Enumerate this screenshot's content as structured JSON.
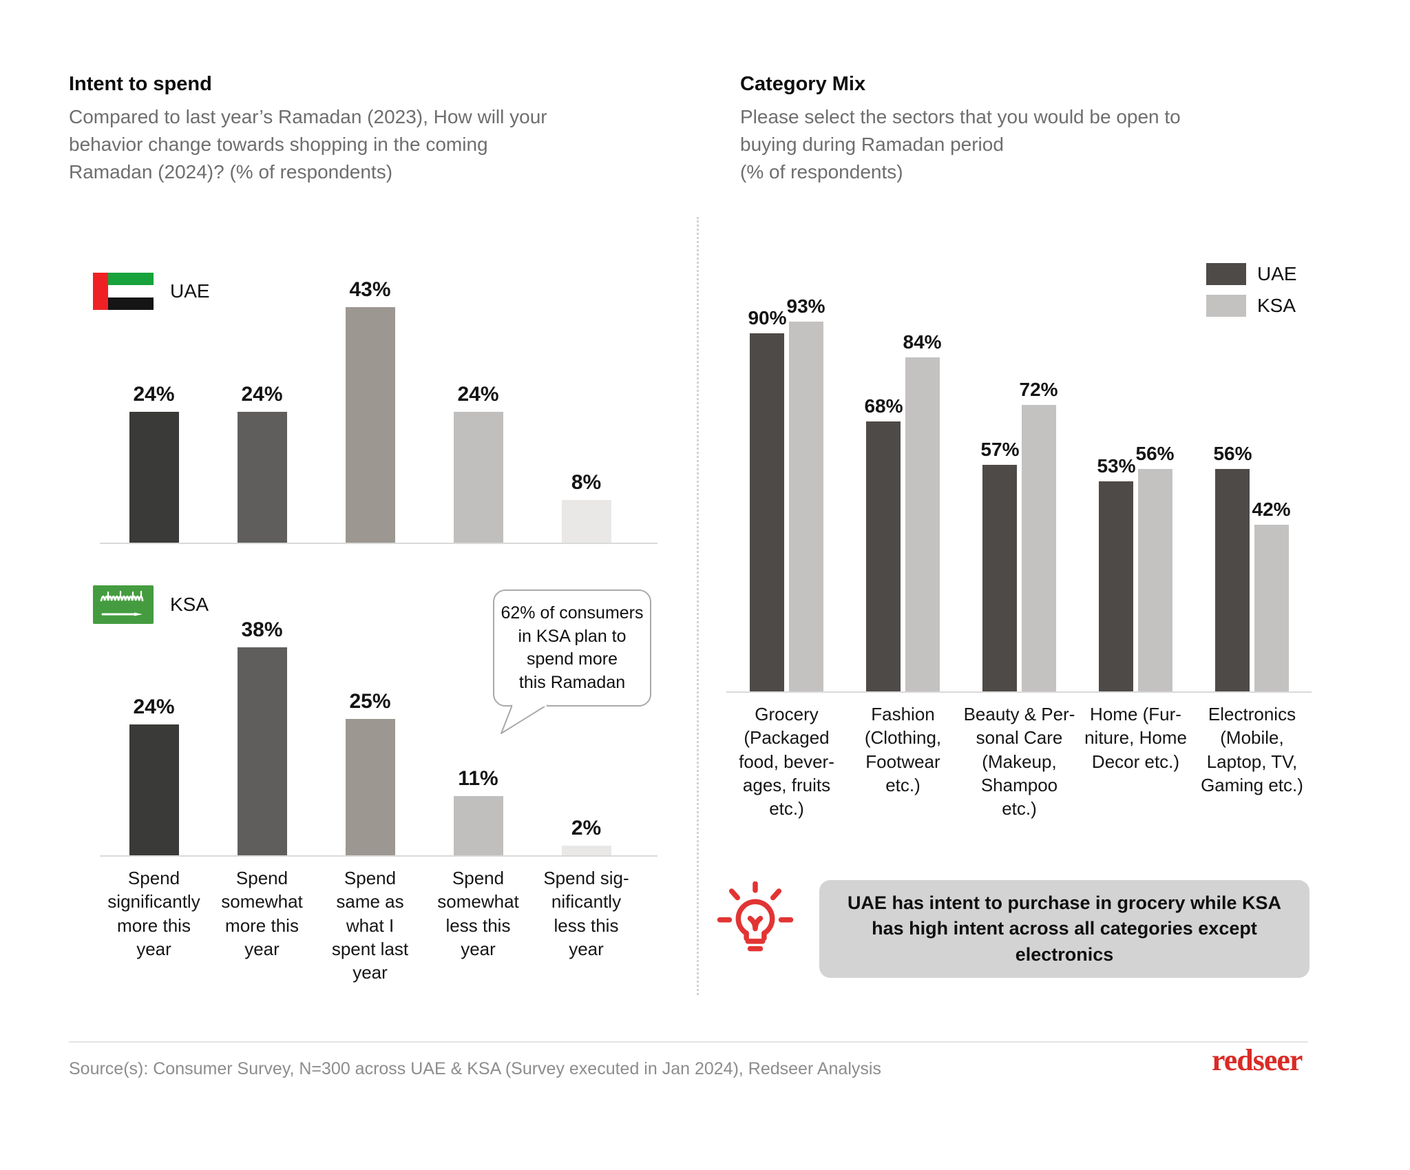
{
  "header": {
    "left": {
      "title": "Intent to spend",
      "subtitle": "Compared to last year’s Ramadan (2023), How will your\nbehavior change towards shopping in the coming\nRamadan (2024)? (% of respondents)"
    },
    "right": {
      "title": "Category Mix",
      "subtitle": "Please select the sectors that you would be open to\nbuying during Ramadan period\n(% of respondents)"
    }
  },
  "flags": {
    "uae_label": "UAE",
    "ksa_label": "KSA"
  },
  "callout": {
    "text": "62% of consumers\nin KSA plan to\nspend more\nthis Ramadan"
  },
  "insight": {
    "text": "UAE has intent to purchase in grocery while KSA has high intent across all categories except electronics"
  },
  "footer": {
    "source": "Source(s): Consumer Survey, N=300 across UAE & KSA (Survey executed in Jan 2024), Redseer Analysis",
    "logo_text": "redseer",
    "logo_color": "#d92b26"
  },
  "chart_data": [
    {
      "id": "intent-to-spend-uae",
      "type": "bar",
      "country": "UAE",
      "title": "Intent to spend — UAE",
      "unit": "%",
      "ylim": [
        0,
        50
      ],
      "gridlines": false,
      "value_labels": true,
      "categories": [
        "Spend significantly more this year",
        "Spend somewhat more this year",
        "Spend same as what I spent last year",
        "Spend somewhat less this year",
        "Spend significantly less this year"
      ],
      "categories_display": [
        "Spend\nsignificantly\nmore this\nyear",
        "Spend\nsomewhat\nmore this\nyear",
        "Spend\nsame as\nwhat I\nspent last\nyear",
        "Spend\nsomewhat\nless this\nyear",
        "Spend sig-\nnificantly\nless this\nyear"
      ],
      "values": [
        24,
        24,
        43,
        24,
        8
      ],
      "bar_colors": [
        "#3a3a39",
        "#5f5e5d",
        "#9d9791",
        "#c0bfbe",
        "#e9e8e7"
      ]
    },
    {
      "id": "intent-to-spend-ksa",
      "type": "bar",
      "country": "KSA",
      "title": "Intent to spend — KSA",
      "unit": "%",
      "ylim": [
        0,
        50
      ],
      "gridlines": false,
      "value_labels": true,
      "categories": [
        "Spend significantly more this year",
        "Spend somewhat more this year",
        "Spend same as what I spent last year",
        "Spend somewhat less this year",
        "Spend significantly less this year"
      ],
      "values": [
        24,
        38,
        25,
        11,
        2
      ],
      "bar_colors": [
        "#3a3a39",
        "#5f5e5d",
        "#9d9791",
        "#c0bfbe",
        "#e9e8e7"
      ]
    },
    {
      "id": "category-mix",
      "type": "grouped-bar",
      "title": "Category Mix",
      "unit": "%",
      "ylim": [
        0,
        100
      ],
      "gridlines": false,
      "value_labels": true,
      "legend_position": "top-right",
      "categories": [
        "Grocery (Packaged food, beverages, fruits etc.)",
        "Fashion (Clothing, Footwear etc.)",
        "Beauty & Personal Care (Makeup, Shampoo etc.)",
        "Home (Furniture, Home Decor etc.)",
        "Electronics (Mobile, Laptop, TV, Gaming etc.)"
      ],
      "categories_display": [
        "Grocery\n(Packaged\nfood, bever-\nages, fruits\netc.)",
        "Fashion\n(Clothing,\nFootwear\netc.)",
        "Beauty & Per-\nsonal Care\n(Makeup,\nShampoo\netc.)",
        "Home (Fur-\nniture, Home\nDecor etc.)",
        "Electronics\n(Mobile,\nLaptop, TV,\nGaming etc.)"
      ],
      "series": [
        {
          "name": "UAE",
          "color": "#4e4a47",
          "values": [
            90,
            68,
            57,
            53,
            56
          ]
        },
        {
          "name": "KSA",
          "color": "#c4c2c1",
          "values": [
            93,
            84,
            72,
            56,
            42
          ]
        }
      ]
    }
  ]
}
